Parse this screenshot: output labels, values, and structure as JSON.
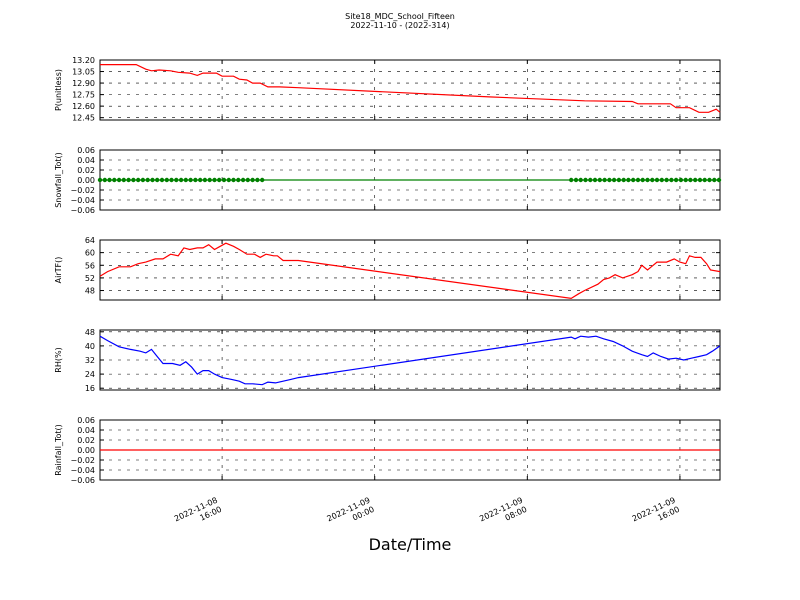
{
  "chart_data": {
    "type": "line",
    "title": "Site18_MDC_School_Fifteen",
    "subtitle": "2022-11-10 - (2022-314)",
    "xlabel": "Date/Time",
    "x_ticks": [
      {
        "line1": "2022-11-08",
        "line2": "16:00",
        "t": 16
      },
      {
        "line1": "2022-11-09",
        "line2": "00:00",
        "t": 24
      },
      {
        "line1": "2022-11-09",
        "line2": "08:00",
        "t": 32
      },
      {
        "line1": "2022-11-09",
        "line2": "16:00",
        "t": 40
      }
    ],
    "xlim": [
      9.6,
      42.1
    ],
    "panels": [
      {
        "id": "p",
        "ylabel": "P(unitless)",
        "ylim": [
          12.42,
          13.2
        ],
        "yticks": [
          "13.20",
          "13.05",
          "12.90",
          "12.75",
          "12.60",
          "12.45"
        ],
        "ytick_values": [
          13.2,
          13.05,
          12.9,
          12.75,
          12.6,
          12.45
        ],
        "series": [
          {
            "color": "#ff0000",
            "marker": "none",
            "points": [
              [
                9.6,
                13.14
              ],
              [
                11,
                13.14
              ],
              [
                11.5,
                13.14
              ],
              [
                12,
                13.08
              ],
              [
                12.3,
                13.06
              ],
              [
                12.7,
                13.07
              ],
              [
                13.3,
                13.06
              ],
              [
                13.7,
                13.04
              ],
              [
                14.3,
                13.03
              ],
              [
                14.7,
                13.0
              ],
              [
                15,
                13.03
              ],
              [
                15.7,
                13.03
              ],
              [
                16,
                12.99
              ],
              [
                16.6,
                12.99
              ],
              [
                16.9,
                12.95
              ],
              [
                17.3,
                12.94
              ],
              [
                17.6,
                12.9
              ],
              [
                18,
                12.9
              ],
              [
                18.4,
                12.85
              ],
              [
                19,
                12.85
              ],
              [
                20,
                12.84
              ],
              [
                30,
                12.72
              ],
              [
                35,
                12.67
              ],
              [
                37.5,
                12.66
              ],
              [
                37.8,
                12.63
              ],
              [
                39.5,
                12.63
              ],
              [
                39.8,
                12.58
              ],
              [
                40.5,
                12.58
              ],
              [
                41,
                12.52
              ],
              [
                41.5,
                12.52
              ],
              [
                41.9,
                12.56
              ],
              [
                42.1,
                12.52
              ]
            ]
          }
        ]
      },
      {
        "id": "snow",
        "ylabel": "Snowfall_Tot()",
        "ylim": [
          -0.06,
          0.06
        ],
        "yticks": [
          "0.06",
          "0.04",
          "0.02",
          "0.00",
          "−0.02",
          "−0.04",
          "−0.06"
        ],
        "ytick_values": [
          0.06,
          0.04,
          0.02,
          0.0,
          -0.02,
          -0.04,
          -0.06
        ],
        "series": [
          {
            "color": "#008000",
            "marker": "dot",
            "points": [
              [
                9.6,
                0
              ],
              [
                42.1,
                0
              ]
            ],
            "marker_ranges": [
              [
                9.6,
                18.1,
                0.25
              ],
              [
                34.3,
                42.1,
                0.25
              ]
            ]
          }
        ]
      },
      {
        "id": "airt",
        "ylabel": "AirTF()",
        "ylim": [
          45,
          64
        ],
        "yticks": [
          "64",
          "60",
          "56",
          "52",
          "48"
        ],
        "ytick_values": [
          64,
          60,
          56,
          52,
          48
        ],
        "series": [
          {
            "color": "#ff0000",
            "marker": "none",
            "points": [
              [
                9.6,
                52.5
              ],
              [
                10,
                54
              ],
              [
                10.6,
                55.5
              ],
              [
                11.2,
                55.5
              ],
              [
                11.6,
                56.5
              ],
              [
                12,
                57
              ],
              [
                12.5,
                58
              ],
              [
                12.9,
                58
              ],
              [
                13.3,
                59.5
              ],
              [
                13.7,
                59
              ],
              [
                14,
                61.5
              ],
              [
                14.3,
                61
              ],
              [
                14.7,
                61.5
              ],
              [
                15,
                61.5
              ],
              [
                15.3,
                62.5
              ],
              [
                15.6,
                61
              ],
              [
                15.9,
                62
              ],
              [
                16.2,
                63
              ],
              [
                16.6,
                62
              ],
              [
                16.9,
                61
              ],
              [
                17.3,
                59.5
              ],
              [
                17.7,
                59.5
              ],
              [
                18,
                58.5
              ],
              [
                18.3,
                59.5
              ],
              [
                18.7,
                59
              ],
              [
                18.9,
                59
              ],
              [
                19.2,
                57.5
              ],
              [
                20,
                57.5
              ],
              [
                34.3,
                45.5
              ],
              [
                34.7,
                47
              ],
              [
                35,
                48
              ],
              [
                35.7,
                50
              ],
              [
                36,
                51.5
              ],
              [
                36.3,
                52
              ],
              [
                36.6,
                53
              ],
              [
                37,
                52
              ],
              [
                37.5,
                53
              ],
              [
                37.8,
                54
              ],
              [
                38,
                56
              ],
              [
                38.3,
                54.5
              ],
              [
                38.5,
                55.5
              ],
              [
                38.8,
                57
              ],
              [
                39.3,
                57
              ],
              [
                39.7,
                58
              ],
              [
                40,
                57
              ],
              [
                40.3,
                56.5
              ],
              [
                40.5,
                59
              ],
              [
                40.8,
                58.5
              ],
              [
                41.1,
                58.5
              ],
              [
                41.4,
                56.5
              ],
              [
                41.6,
                54.5
              ],
              [
                42.1,
                54
              ]
            ]
          }
        ]
      },
      {
        "id": "rh",
        "ylabel": "RH(%)",
        "ylim": [
          15,
          49
        ],
        "yticks": [
          "48",
          "40",
          "32",
          "24",
          "16"
        ],
        "ytick_values": [
          48,
          40,
          32,
          24,
          16
        ],
        "series": [
          {
            "color": "#0000ff",
            "marker": "none",
            "points": [
              [
                9.6,
                45.5
              ],
              [
                10,
                43
              ],
              [
                10.6,
                39.5
              ],
              [
                11.2,
                38
              ],
              [
                11.7,
                37
              ],
              [
                12,
                36
              ],
              [
                12.3,
                38
              ],
              [
                12.6,
                34
              ],
              [
                12.9,
                30
              ],
              [
                13.4,
                30
              ],
              [
                13.8,
                29
              ],
              [
                14.1,
                31
              ],
              [
                14.4,
                28
              ],
              [
                14.7,
                24
              ],
              [
                15,
                26
              ],
              [
                15.3,
                26
              ],
              [
                15.6,
                24
              ],
              [
                16,
                22
              ],
              [
                16.5,
                21
              ],
              [
                16.9,
                20
              ],
              [
                17.2,
                18.5
              ],
              [
                17.6,
                18.5
              ],
              [
                18.1,
                18
              ],
              [
                18.4,
                19.5
              ],
              [
                18.8,
                19
              ],
              [
                19.2,
                20
              ],
              [
                19.6,
                21
              ],
              [
                20,
                22
              ],
              [
                34.3,
                45
              ],
              [
                34.5,
                44
              ],
              [
                34.8,
                45.5
              ],
              [
                35.2,
                45
              ],
              [
                35.6,
                45.5
              ],
              [
                36,
                44
              ],
              [
                36.5,
                42.5
              ],
              [
                37,
                40
              ],
              [
                37.5,
                37
              ],
              [
                38,
                35
              ],
              [
                38.3,
                34
              ],
              [
                38.6,
                36
              ],
              [
                39,
                34
              ],
              [
                39.4,
                32.5
              ],
              [
                39.8,
                33
              ],
              [
                40.2,
                32
              ],
              [
                40.6,
                33
              ],
              [
                41,
                34
              ],
              [
                41.4,
                35
              ],
              [
                41.7,
                37
              ],
              [
                42.1,
                40
              ]
            ]
          }
        ]
      },
      {
        "id": "rain",
        "ylabel": "Rainfall_Tot()",
        "ylim": [
          -0.06,
          0.06
        ],
        "yticks": [
          "0.06",
          "0.04",
          "0.02",
          "0.00",
          "−0.02",
          "−0.04",
          "−0.06"
        ],
        "ytick_values": [
          0.06,
          0.04,
          0.02,
          0.0,
          -0.02,
          -0.04,
          -0.06
        ],
        "series": [
          {
            "color": "#ff0000",
            "marker": "none",
            "points": [
              [
                9.6,
                0
              ],
              [
                42.1,
                0
              ]
            ]
          }
        ]
      }
    ]
  }
}
